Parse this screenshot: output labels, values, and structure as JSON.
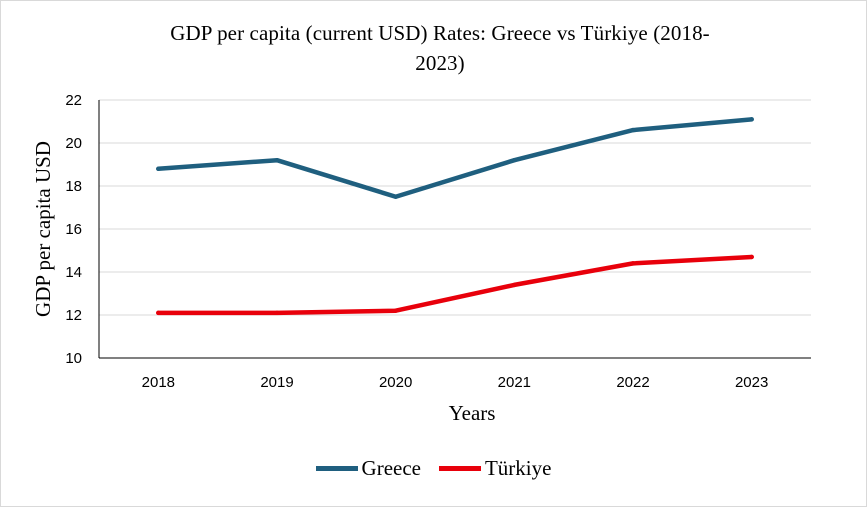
{
  "chart_data": {
    "type": "line",
    "title": "GDP per capita (current USD) Rates: Greece vs Türkiye (2018-2023)",
    "title_line1": "GDP per capita (current USD) Rates: Greece vs Türkiye (2018-",
    "title_line2": "2023)",
    "xlabel": "Years",
    "ylabel": "GDP per capita USD",
    "categories": [
      "2018",
      "2019",
      "2020",
      "2021",
      "2022",
      "2023"
    ],
    "yticks": [
      "10",
      "12",
      "14",
      "16",
      "18",
      "20",
      "22"
    ],
    "ylim": [
      10,
      22
    ],
    "grid": true,
    "legend_position": "bottom",
    "series": [
      {
        "name": "Greece",
        "color": "#1f5f7f",
        "values": [
          18.8,
          19.2,
          17.5,
          19.2,
          20.6,
          21.1
        ]
      },
      {
        "name": "Türkiye",
        "color": "#e8000b",
        "values": [
          12.1,
          12.1,
          12.2,
          13.4,
          14.4,
          14.7
        ]
      }
    ]
  }
}
